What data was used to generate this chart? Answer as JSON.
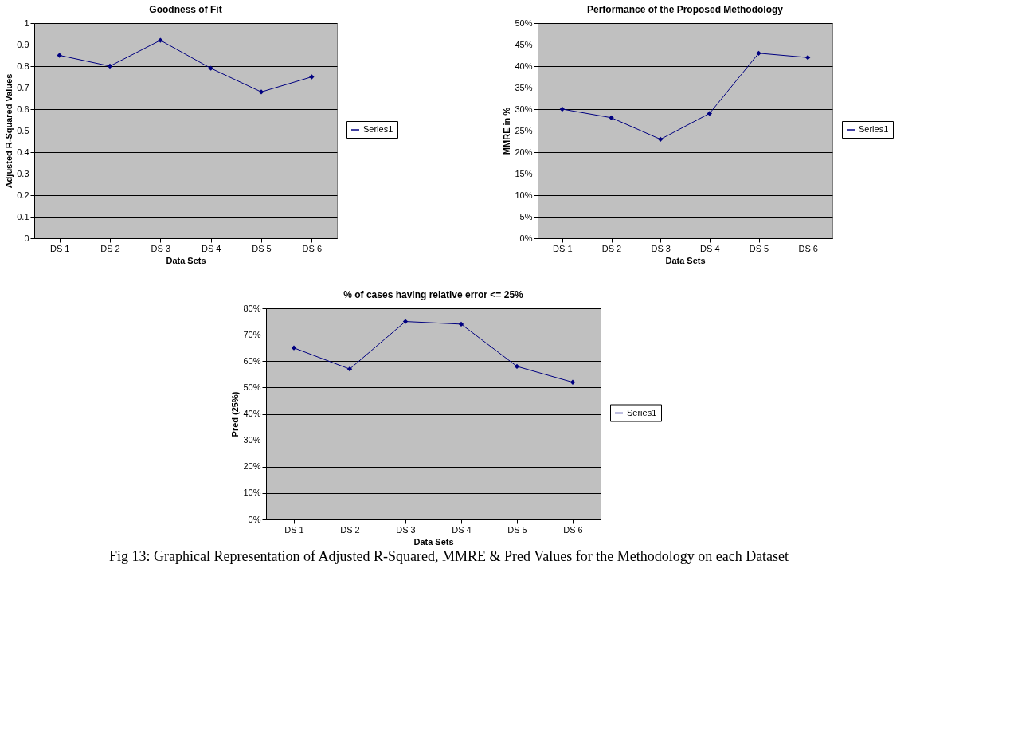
{
  "chart_data": [
    {
      "type": "line",
      "title": "Goodness of Fit",
      "xlabel": "Data Sets",
      "ylabel": "Adjusted R-Squared Values",
      "categories": [
        "DS 1",
        "DS 2",
        "DS 3",
        "DS 4",
        "DS 5",
        "DS 6"
      ],
      "series": [
        {
          "name": "Series1",
          "color": "#000080",
          "values": [
            0.85,
            0.8,
            0.92,
            0.79,
            0.68,
            0.75
          ]
        }
      ],
      "ylim": [
        0,
        1
      ],
      "yticks": [
        0,
        0.1,
        0.2,
        0.3,
        0.4,
        0.5,
        0.6,
        0.7,
        0.8,
        0.9,
        1
      ],
      "grid": "y",
      "legend": "right",
      "marker": "diamond"
    },
    {
      "type": "line",
      "title": "Performance of the Proposed Methodology",
      "xlabel": "Data Sets",
      "ylabel": "MMRE in %",
      "categories": [
        "DS 1",
        "DS 2",
        "DS 3",
        "DS 4",
        "DS 5",
        "DS 6"
      ],
      "series": [
        {
          "name": "Series1",
          "color": "#000080",
          "values": [
            30,
            28,
            23,
            29,
            43,
            42
          ]
        }
      ],
      "ylim": [
        0,
        50
      ],
      "yticks": [
        {
          "value": 0,
          "label": "0%"
        },
        {
          "value": 5,
          "label": "5%"
        },
        {
          "value": 10,
          "label": "10%"
        },
        {
          "value": 15,
          "label": "15%"
        },
        {
          "value": 20,
          "label": "20%"
        },
        {
          "value": 25,
          "label": "25%"
        },
        {
          "value": 30,
          "label": "30%"
        },
        {
          "value": 35,
          "label": "35%"
        },
        {
          "value": 40,
          "label": "40%"
        },
        {
          "value": 45,
          "label": "45%"
        },
        {
          "value": 50,
          "label": "50%"
        }
      ],
      "grid": "y",
      "legend": "right",
      "marker": "diamond"
    },
    {
      "type": "line",
      "title": "% of cases having relative error <= 25%",
      "xlabel": "Data Sets",
      "ylabel": "Pred (25%)",
      "categories": [
        "DS 1",
        "DS 2",
        "DS 3",
        "DS 4",
        "DS 5",
        "DS 6"
      ],
      "series": [
        {
          "name": "Series1",
          "color": "#000080",
          "values": [
            65,
            57,
            75,
            74,
            58,
            52
          ]
        }
      ],
      "ylim": [
        0,
        80
      ],
      "yticks": [
        {
          "value": 0,
          "label": "0%"
        },
        {
          "value": 10,
          "label": "10%"
        },
        {
          "value": 20,
          "label": "20%"
        },
        {
          "value": 30,
          "label": "30%"
        },
        {
          "value": 40,
          "label": "40%"
        },
        {
          "value": 50,
          "label": "50%"
        },
        {
          "value": 60,
          "label": "60%"
        },
        {
          "value": 70,
          "label": "70%"
        },
        {
          "value": 80,
          "label": "80%"
        }
      ],
      "grid": "y",
      "legend": "right",
      "marker": "diamond",
      "annotations": [
        "Fig 13: Graphical Representation of Adjusted R-Squared, MMRE & Pred Values for the Methodology on each Dataset"
      ]
    }
  ]
}
